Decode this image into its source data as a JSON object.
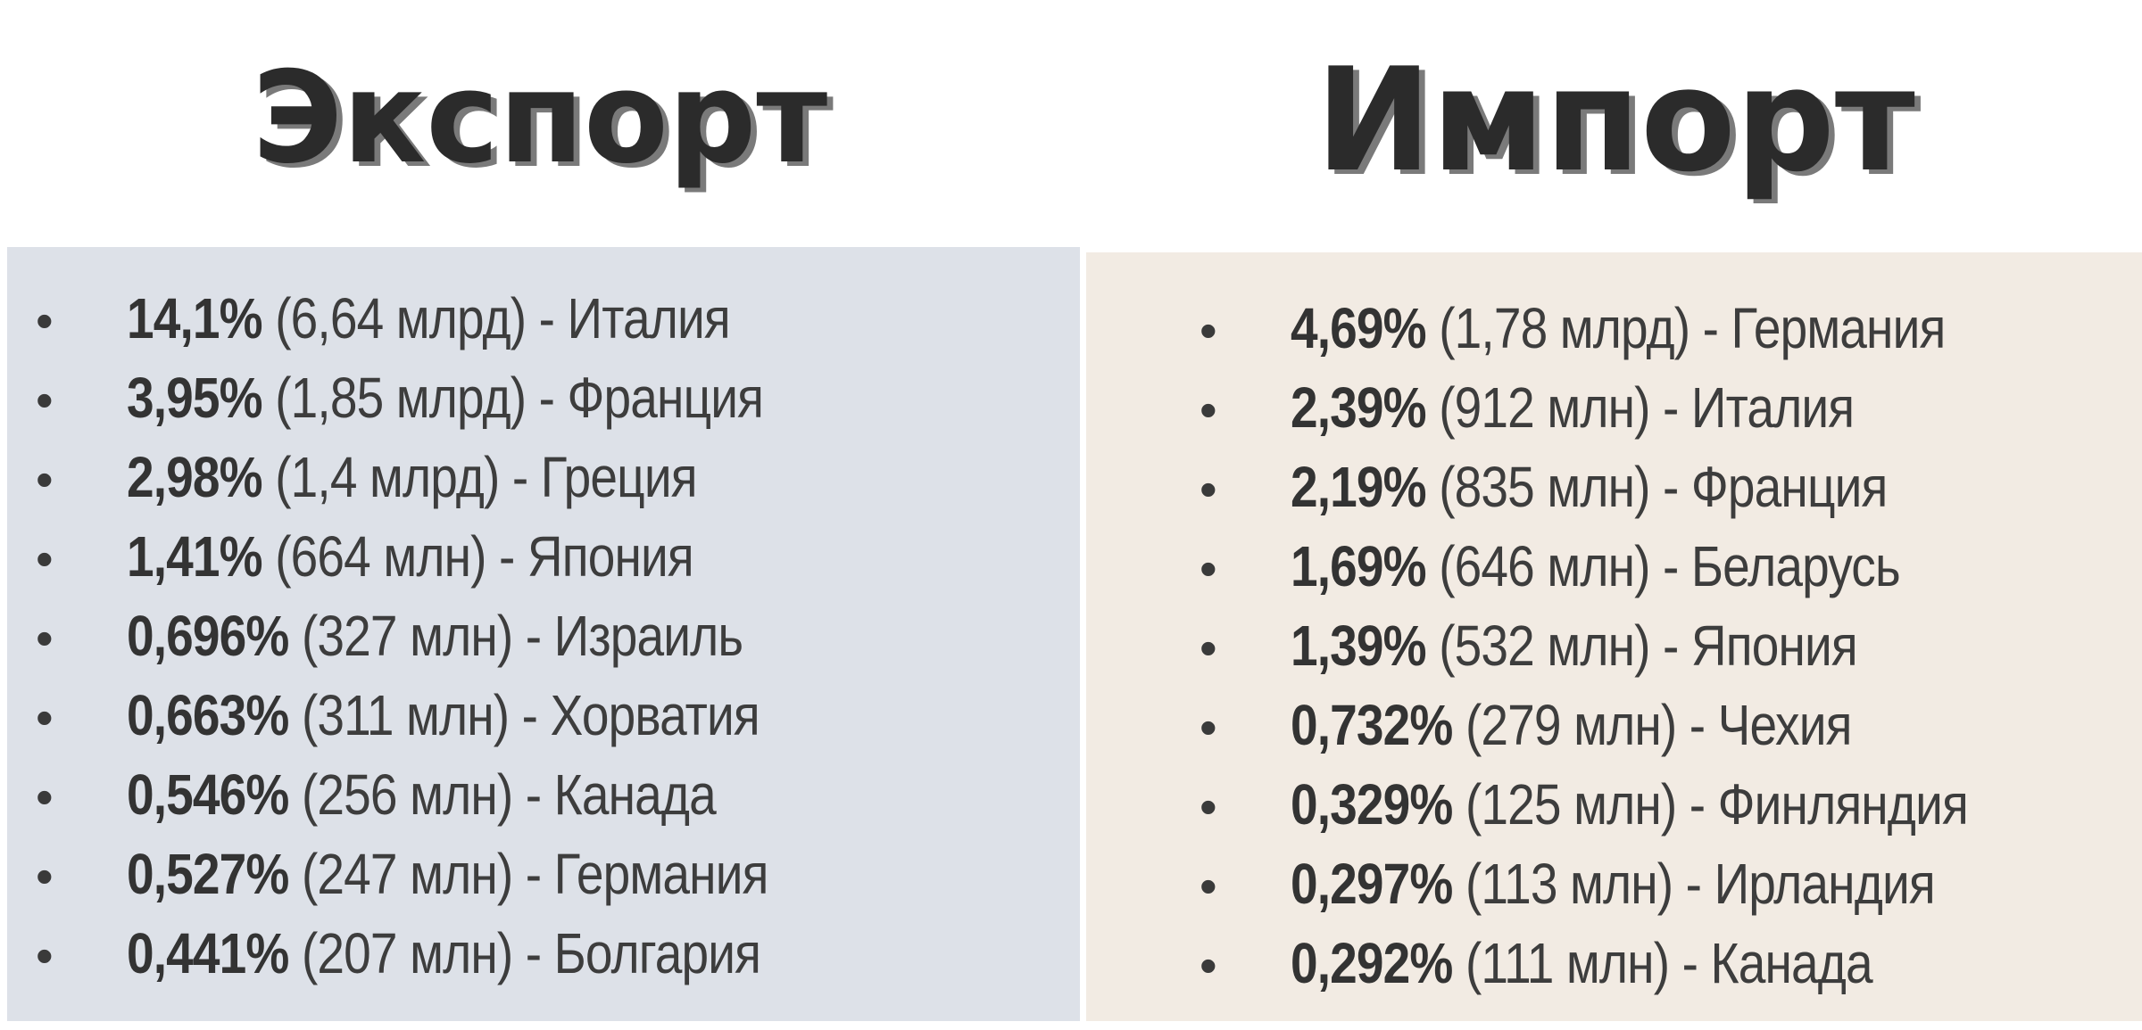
{
  "export": {
    "title": "Экспорт",
    "items": [
      {
        "percent": "14,1%",
        "detail": " (6,64 млрд) - Италия"
      },
      {
        "percent": "3,95%",
        "detail": " (1,85 млрд) - Франция"
      },
      {
        "percent": "2,98%",
        "detail": " (1,4 млрд) - Греция"
      },
      {
        "percent": "1,41%",
        "detail": " (664 млн) - Япония"
      },
      {
        "percent": "0,696%",
        "detail": " (327 млн) - Израиль"
      },
      {
        "percent": "0,663%",
        "detail": " (311 млн) - Хорватия"
      },
      {
        "percent": "0,546%",
        "detail": " (256 млн) - Канада"
      },
      {
        "percent": "0,527%",
        "detail": " (247 млн) - Германия"
      },
      {
        "percent": "0,441%",
        "detail": " (207 млн) - Болгария"
      }
    ]
  },
  "import": {
    "title": "Импорт",
    "items": [
      {
        "percent": "4,69%",
        "detail": " (1,78 млрд) - Германия"
      },
      {
        "percent": "2,39%",
        "detail": " (912 млн) - Италия"
      },
      {
        "percent": "2,19%",
        "detail": " (835 млн) - Франция"
      },
      {
        "percent": "1,69%",
        "detail": " (646 млн) - Беларусь"
      },
      {
        "percent": "1,39%",
        "detail": " (532 млн) - Япония"
      },
      {
        "percent": "0,732%",
        "detail": " (279 млн) - Чехия"
      },
      {
        "percent": "0,329%",
        "detail": " (125 млн) - Финляндия"
      },
      {
        "percent": "0,297%",
        "detail": " (113 млн) - Ирландия"
      },
      {
        "percent": "0,292%",
        "detail": " (111 млн) - Канада"
      }
    ]
  },
  "colors": {
    "export_panel": "#dde1e8",
    "import_panel": "#f2ebe3",
    "heading_text": "#2b2b2b",
    "heading_shadow": "#7a7a7a"
  }
}
